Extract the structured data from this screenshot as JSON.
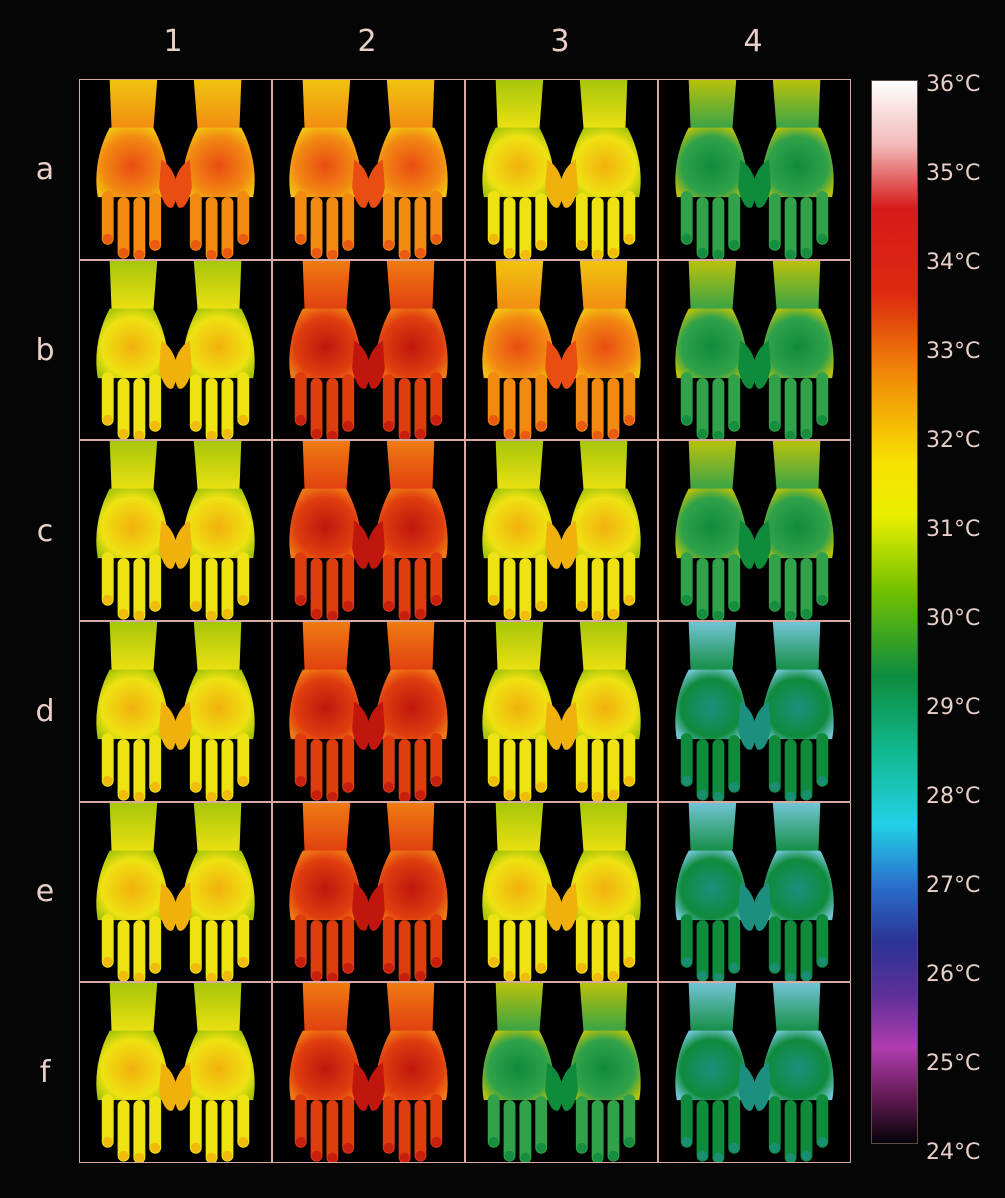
{
  "columns": [
    "1",
    "2",
    "3",
    "4"
  ],
  "rows": [
    "a",
    "b",
    "c",
    "d",
    "e",
    "f"
  ],
  "scale": {
    "labels": [
      "36°C",
      "35°C",
      "34°C",
      "33°C",
      "32°C",
      "31°C",
      "30°C",
      "29°C",
      "28°C",
      "27°C",
      "26°C",
      "25°C",
      "24°C"
    ],
    "max": 36,
    "min": 24
  },
  "palette": {
    "background": "#050505",
    "grid_line": "#d8aaa2",
    "text": "#e8cfc7"
  }
}
